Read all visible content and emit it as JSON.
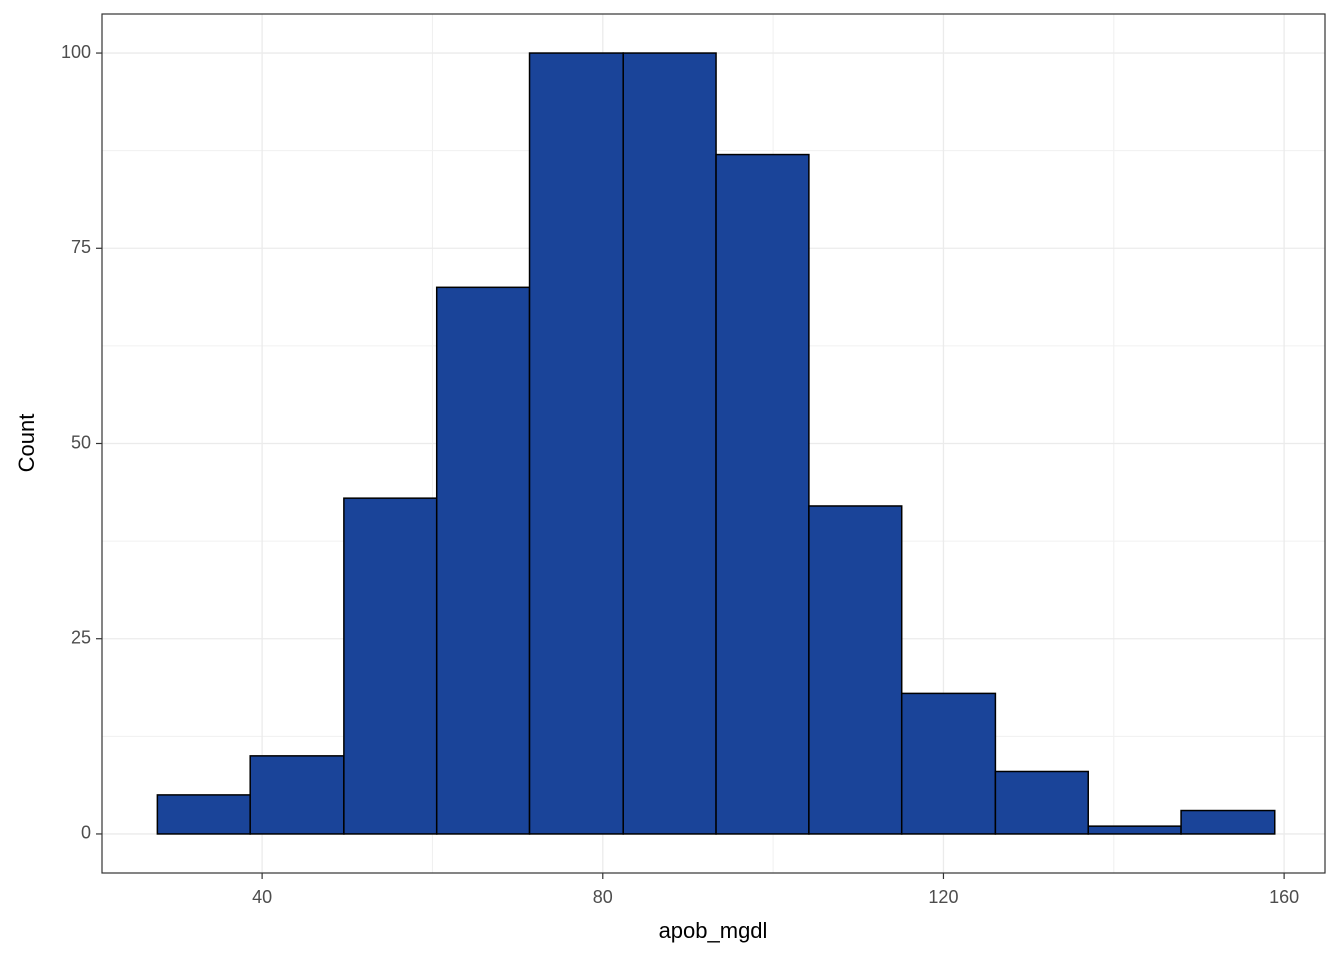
{
  "chart_data": {
    "type": "histogram",
    "x_label": "apob_mgdl",
    "y_label": "Count",
    "bins": [
      27.7,
      38.6,
      49.6,
      60.5,
      71.4,
      82.4,
      93.3,
      104.2,
      115.1,
      126.1,
      137.0,
      147.9,
      158.9
    ],
    "values": [
      5,
      10,
      43,
      70,
      100,
      100,
      87,
      42,
      18,
      8,
      1,
      3
    ],
    "color": "#1a4499",
    "edge_color": "#000000",
    "xlim": [
      21.2,
      164.8
    ],
    "xticks": [
      40,
      80,
      120,
      160
    ],
    "ylim": [
      -5,
      105
    ],
    "yticks": [
      0,
      25,
      50,
      75,
      100
    ],
    "grid": true
  }
}
